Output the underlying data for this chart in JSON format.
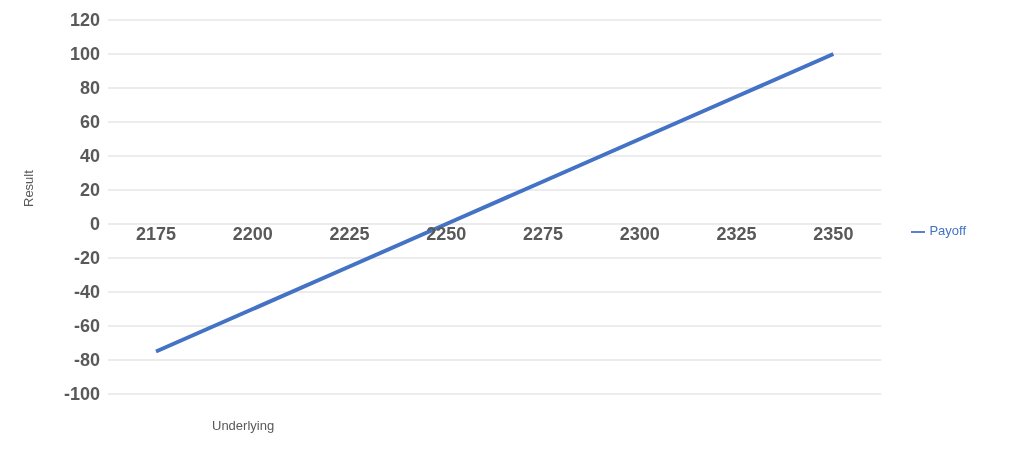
{
  "chart_data": {
    "type": "line",
    "xlabel": "Underlying",
    "ylabel": "Result",
    "categories": [
      "2175",
      "2200",
      "2225",
      "2250",
      "2275",
      "2300",
      "2325",
      "2350"
    ],
    "series": [
      {
        "name": "Payoff",
        "color": "#4472c4",
        "values": [
          -75,
          -50,
          -25,
          0,
          25,
          50,
          75,
          100
        ]
      }
    ],
    "ylim": [
      -100,
      120
    ],
    "yticks": [
      -100,
      -80,
      -60,
      -40,
      -20,
      0,
      20,
      40,
      60,
      80,
      100,
      120
    ],
    "grid": "y",
    "legend": "right",
    "marker": "none",
    "line_style": "solid"
  }
}
